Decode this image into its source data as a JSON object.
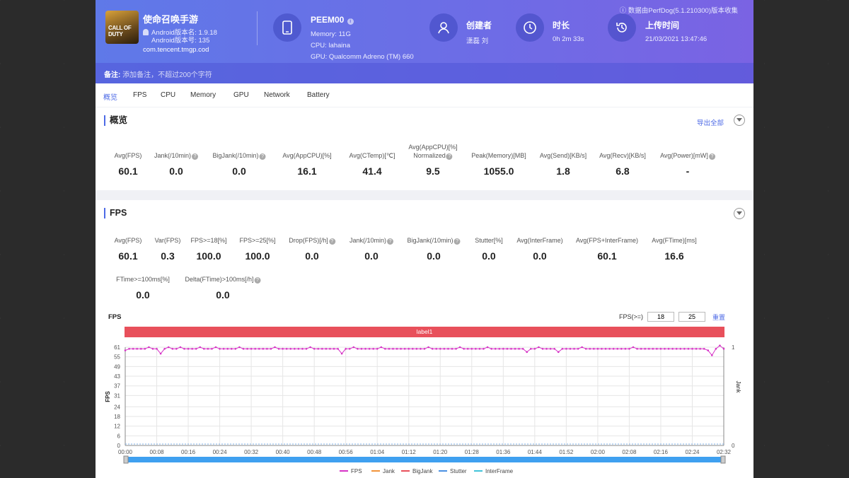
{
  "game": {
    "name": "使命召唤手游",
    "icon_text": "CALL OF DUTY",
    "android_version_name": "Android版本名: 1.9.18",
    "android_version_code": "Android版本号: 135",
    "package": "com.tencent.tmgp.cod"
  },
  "device": {
    "model": "PEEM00",
    "memory": "Memory: 11G",
    "cpu": "CPU: lahaina",
    "gpu": "GPU: Qualcomm Adreno (TM) 660"
  },
  "creator": {
    "title": "创建者",
    "value": "潇磊 刘"
  },
  "duration": {
    "title": "时长",
    "value": "0h 2m 33s"
  },
  "upload": {
    "title": "上传时间",
    "value": "21/03/2021 13:47:46"
  },
  "collected_by": "数据由PerfDog(5.1.210300)版本收集",
  "note": {
    "label": "备注:",
    "placeholder": "添加备注，不超过200个字符"
  },
  "tabs": [
    "概览",
    "FPS",
    "CPU",
    "Memory",
    "GPU",
    "Network",
    "Battery"
  ],
  "overview": {
    "title": "概览",
    "export_label": "导出全部",
    "metrics": [
      {
        "label": "Avg(FPS)",
        "value": "60.1"
      },
      {
        "label": "Jank(/10min)",
        "value": "0.0"
      },
      {
        "label": "BigJank(/10min)",
        "value": "0.0"
      },
      {
        "label": "Avg(AppCPU)[%]",
        "value": "16.1"
      },
      {
        "label": "Avg(CTemp)[℃]",
        "value": "41.4"
      },
      {
        "label": "Avg(AppCPU)[%]",
        "label2": "Normalized",
        "value": "9.5"
      },
      {
        "label": "Peak(Memory)[MB]",
        "value": "1055.0"
      },
      {
        "label": "Avg(Send)[KB/s]",
        "value": "1.8"
      },
      {
        "label": "Avg(Recv)[KB/s]",
        "value": "6.8"
      },
      {
        "label": "Avg(Power)[mW]",
        "value": "-"
      }
    ]
  },
  "fps": {
    "title": "FPS",
    "metrics": [
      {
        "label": "Avg(FPS)",
        "value": "60.1"
      },
      {
        "label": "Var(FPS)",
        "value": "0.3"
      },
      {
        "label": "FPS>=18[%]",
        "value": "100.0"
      },
      {
        "label": "FPS>=25[%]",
        "value": "100.0"
      },
      {
        "label": "Drop(FPS)[/h]",
        "value": "0.0"
      },
      {
        "label": "Jank(/10min)",
        "value": "0.0"
      },
      {
        "label": "BigJank(/10min)",
        "value": "0.0"
      },
      {
        "label": "Stutter[%]",
        "value": "0.0"
      },
      {
        "label": "Avg(InterFrame)",
        "value": "0.0"
      },
      {
        "label": "Avg(FPS+InterFrame)",
        "value": "60.1"
      },
      {
        "label": "Avg(FTime)[ms]",
        "value": "16.6"
      }
    ],
    "metrics2": [
      {
        "label": "FTime>=100ms[%]",
        "value": "0.0"
      },
      {
        "label": "Delta(FTime)>100ms[/h]",
        "value": "0.0"
      }
    ],
    "chart_label": "FPS",
    "threshold_label": "FPS(>=)",
    "threshold1": "18",
    "threshold2": "25",
    "reset_label": "重置",
    "label_bar": "label1"
  },
  "chart_data": {
    "type": "line",
    "title": "",
    "ylabel": "FPS",
    "y2label": "Jank",
    "ylim": [
      0,
      61
    ],
    "yticks": [
      0,
      6,
      12,
      18,
      24,
      31,
      37,
      43,
      49,
      55,
      61
    ],
    "y2lim": [
      0,
      1
    ],
    "y2ticks": [
      0,
      1
    ],
    "xticks": [
      "00:00",
      "00:08",
      "00:16",
      "00:24",
      "00:32",
      "00:40",
      "00:48",
      "00:56",
      "01:04",
      "01:12",
      "01:20",
      "01:28",
      "01:36",
      "01:44",
      "01:52",
      "02:00",
      "02:08",
      "02:16",
      "02:24",
      "02:32"
    ],
    "duration_seconds": 152,
    "series": [
      {
        "name": "FPS",
        "color": "#d633c6",
        "values": [
          59,
          60,
          60,
          60,
          60,
          60,
          61,
          60,
          60,
          57,
          60,
          61,
          60,
          60,
          61,
          60,
          60,
          60,
          60,
          61,
          60,
          60,
          60,
          61,
          60,
          60,
          60,
          60,
          60,
          61,
          60,
          60,
          60,
          60,
          60,
          60,
          60,
          60,
          61,
          60,
          60,
          60,
          60,
          60,
          60,
          60,
          60,
          61,
          60,
          60,
          60,
          60,
          60,
          60,
          60,
          57,
          60,
          60,
          61,
          60,
          60,
          60,
          60,
          60,
          60,
          61,
          60,
          60,
          60,
          60,
          60,
          60,
          60,
          60,
          60,
          60,
          60,
          61,
          60,
          60,
          60,
          60,
          60,
          60,
          60,
          61,
          60,
          60,
          60,
          60,
          60,
          60,
          61,
          60,
          60,
          60,
          60,
          60,
          60,
          60,
          60,
          60,
          58,
          60,
          60,
          61,
          60,
          60,
          60,
          60,
          58,
          60,
          60,
          60,
          60,
          60,
          61,
          60,
          60,
          60,
          60,
          60,
          60,
          60,
          60,
          60,
          60,
          60,
          60,
          61,
          60,
          60,
          60,
          60,
          60,
          60,
          60,
          60,
          60,
          60,
          60,
          60,
          60,
          60,
          60,
          60,
          60,
          60,
          59,
          56,
          60,
          62,
          60
        ]
      },
      {
        "name": "Jank",
        "color": "#f2943a",
        "values": [
          0,
          0
        ]
      },
      {
        "name": "BigJank",
        "color": "#e8505b",
        "values": [
          0,
          0
        ]
      },
      {
        "name": "Stutter",
        "color": "#4a90e2",
        "values": [
          0,
          0
        ]
      },
      {
        "name": "InterFrame",
        "color": "#41c4d9",
        "values": [
          0,
          0
        ]
      }
    ]
  }
}
